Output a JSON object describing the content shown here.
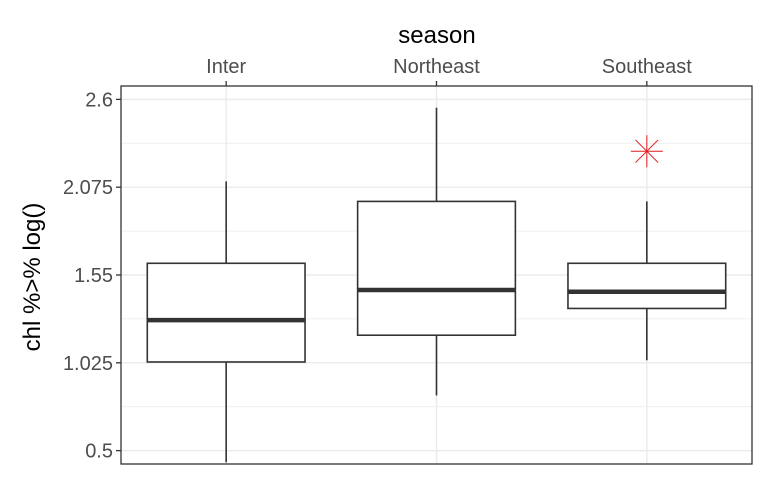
{
  "chart_data": {
    "type": "boxplot",
    "title": "",
    "xlabel": "season",
    "xlabel_position": "top",
    "ylabel": "chl %>% log()",
    "categories": [
      "Inter",
      "Northeast",
      "Southeast"
    ],
    "y_ticks": [
      0.5,
      1.025,
      1.55,
      2.075,
      2.6
    ],
    "y_tick_labels": [
      "0.5",
      "1.025",
      "1.55",
      "2.075",
      "2.6"
    ],
    "ylim": [
      0.42,
      2.68
    ],
    "grid": true,
    "boxes": [
      {
        "category": "Inter",
        "lower_whisker": 0.43,
        "q1": 1.03,
        "median": 1.28,
        "q3": 1.62,
        "upper_whisker": 2.11,
        "outliers": []
      },
      {
        "category": "Northeast",
        "lower_whisker": 0.83,
        "q1": 1.19,
        "median": 1.46,
        "q3": 1.99,
        "upper_whisker": 2.55,
        "outliers": []
      },
      {
        "category": "Southeast",
        "lower_whisker": 1.04,
        "q1": 1.35,
        "median": 1.45,
        "q3": 1.62,
        "upper_whisker": 1.99,
        "outliers": [
          2.29
        ]
      }
    ],
    "colors": {
      "box_line": "#333333",
      "grid": "#ebebeb",
      "outlier": "#e41a1c",
      "panel_border": "#333333"
    }
  }
}
